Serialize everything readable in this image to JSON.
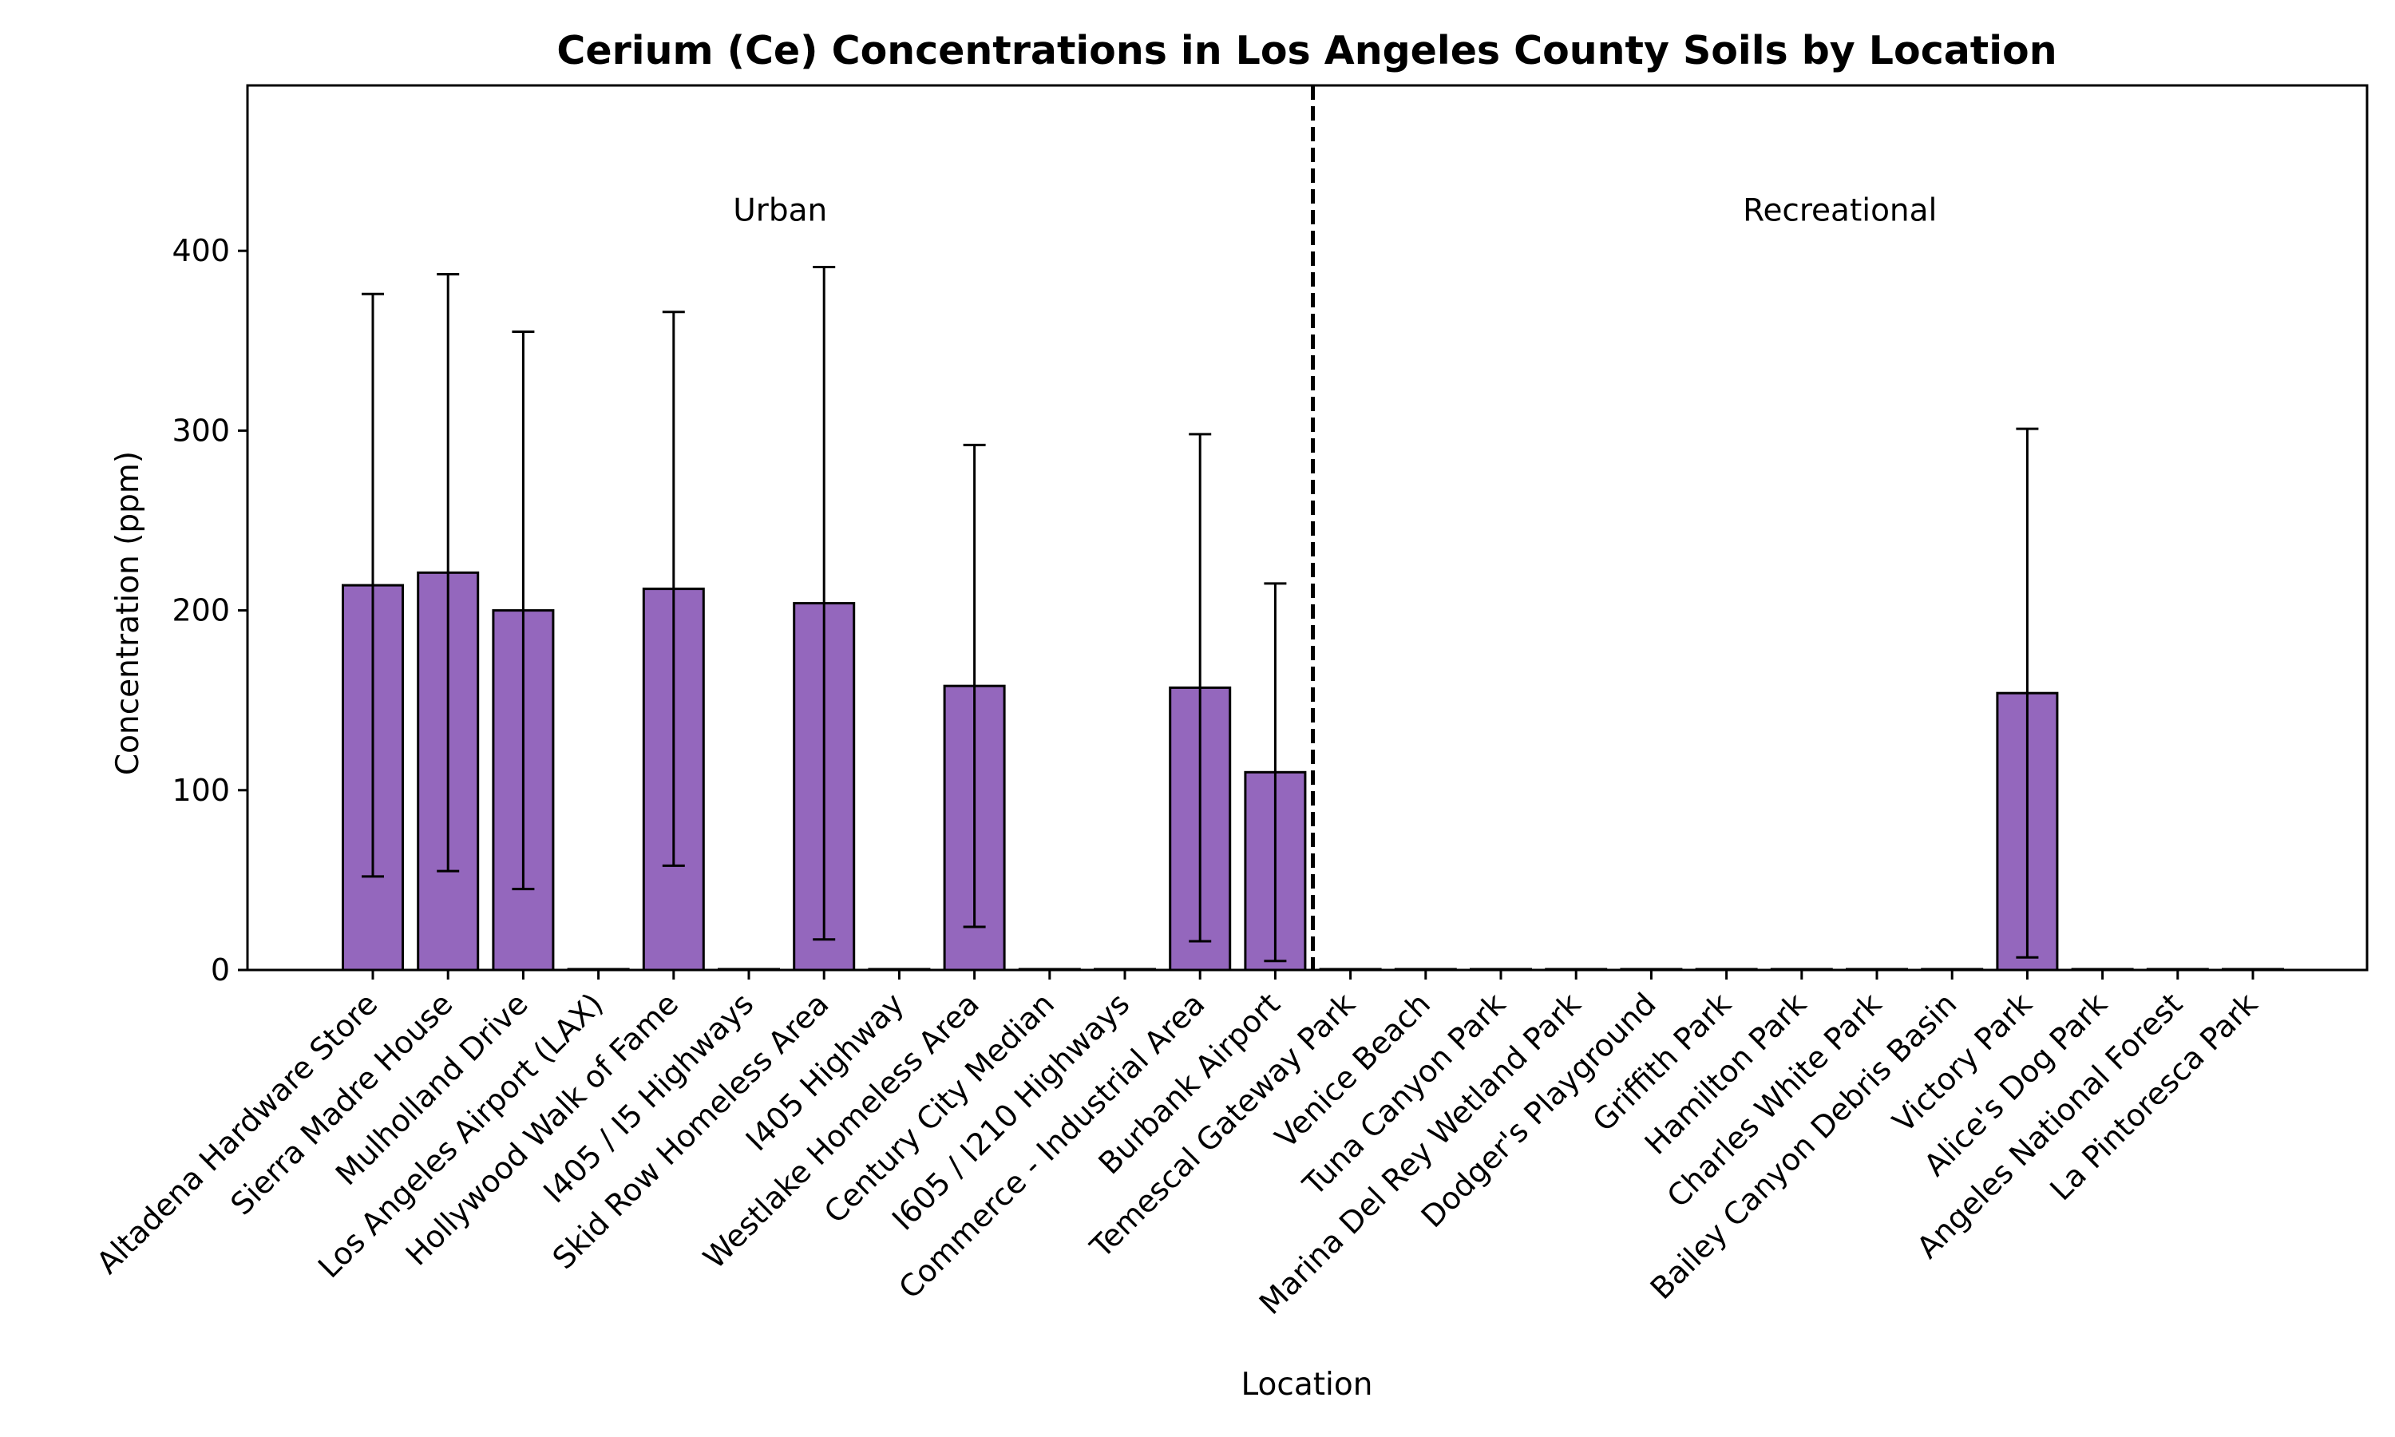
{
  "chart_data": {
    "type": "bar",
    "title": "Cerium (Ce) Concentrations in Los Angeles County Soils by Location",
    "xlabel": "Location",
    "ylabel": "Concentration (ppm)",
    "ylim": [
      0,
      492
    ],
    "yticks": [
      0,
      100,
      200,
      300,
      400
    ],
    "grid": false,
    "bar_color": "#9467bd",
    "bar_edge_color": "#000000",
    "categories": [
      "Altadena Hardware Store",
      "Sierra Madre House",
      "Mulholland Drive",
      "Los Angeles Airport (LAX)",
      "Hollywood Walk of Fame",
      "I405 / I5 Highways",
      "Skid Row Homeless Area",
      "I405 Highway",
      "Westlake Homeless Area",
      "Century City Median",
      "I605 / I210 Highways",
      "Commerce - Industrial Area",
      "Burbank Airport",
      "Temescal Gateway Park",
      "Venice Beach",
      "Tuna Canyon Park",
      "Marina Del Rey Wetland Park",
      "Dodger's Playground",
      "Griffith Park",
      "Hamilton Park",
      "Charles White Park",
      "Bailey Canyon Debris Basin",
      "Victory Park",
      "Alice's Dog Park",
      "Angeles National Forest",
      "La Pintoresca Park"
    ],
    "values": [
      214,
      221,
      200,
      0,
      212,
      0,
      204,
      0,
      158,
      0,
      0,
      157,
      110,
      0,
      0,
      0,
      0,
      0,
      0,
      0,
      0,
      0,
      154,
      0,
      0,
      0
    ],
    "error_low": [
      52,
      55,
      45,
      null,
      58,
      null,
      17,
      null,
      24,
      null,
      null,
      16,
      5,
      null,
      null,
      null,
      null,
      null,
      null,
      null,
      null,
      null,
      7,
      null,
      null,
      null
    ],
    "error_high": [
      376,
      387,
      355,
      null,
      366,
      null,
      391,
      null,
      292,
      null,
      null,
      298,
      215,
      null,
      null,
      null,
      null,
      null,
      null,
      null,
      null,
      null,
      301,
      null,
      null,
      null
    ],
    "groups": [
      {
        "label": "Urban",
        "from_index": 0,
        "to_index": 12
      },
      {
        "label": "Recreational",
        "from_index": 13,
        "to_index": 25
      }
    ],
    "group_label_y": 423
  }
}
